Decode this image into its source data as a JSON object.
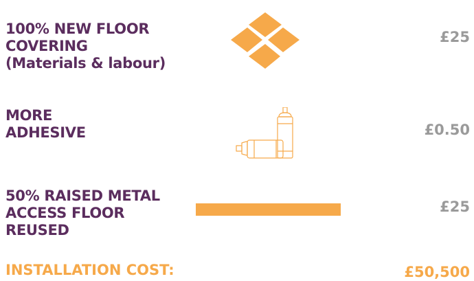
{
  "rows": [
    {
      "label_lines": [
        "100% NEW FLOOR",
        "COVERING",
        "(Materials & labour)"
      ],
      "price": "£25",
      "icon": "floor-tiles-icon"
    },
    {
      "label_lines": [
        "MORE",
        "ADHESIVE"
      ],
      "price": "£0.50",
      "icon": "spray-cans-icon"
    },
    {
      "label_lines": [
        "50% RAISED METAL",
        "ACCESS FLOOR",
        "REUSED"
      ],
      "price": "£25",
      "icon": "floor-panel-bar"
    }
  ],
  "total": {
    "label": "INSTALLATION COST:",
    "value": "£50,500"
  },
  "colors": {
    "purple": "#5b2d5e",
    "orange": "#f6a94a",
    "grey": "#9a9a9a"
  }
}
